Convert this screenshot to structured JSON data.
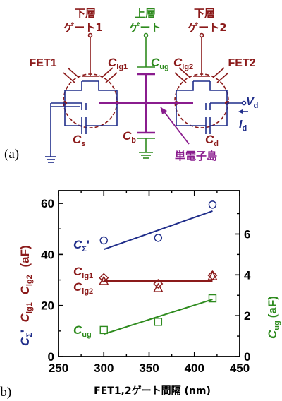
{
  "colors": {
    "circuit": "#1f2d8a",
    "gate": "#8b1a1a",
    "upper_gate": "#2e8b1e",
    "island": "#8a1c8e",
    "black": "#000000"
  },
  "panel_a": {
    "panel_label": "(a)",
    "lower_gate_1": [
      "下層",
      "ゲート1"
    ],
    "upper_gate": [
      "上層",
      "ゲート"
    ],
    "lower_gate_2": [
      "下層",
      "ゲート2"
    ],
    "fet1": "FET1",
    "fet2": "FET2",
    "c_lg1": {
      "sym": "C",
      "sub": "lg1"
    },
    "c_ug": {
      "sym": "C",
      "sub": "ug"
    },
    "c_lg2": {
      "sym": "C",
      "sub": "lg2"
    },
    "c_s": {
      "sym": "C",
      "sub": "s"
    },
    "c_b": {
      "sym": "C",
      "sub": "b"
    },
    "c_d": {
      "sym": "C",
      "sub": "d"
    },
    "v_d": {
      "sym": "V",
      "sub": "d"
    },
    "i_d": {
      "sym": "I",
      "sub": "d"
    },
    "island": "単電子島"
  },
  "panel_b": {
    "panel_label": "(b)",
    "ylabel_left": [
      {
        "sym": "C",
        "sub": "Σ",
        "prime": "'",
        "color": "#1f2d8a"
      },
      {
        "sym": "C",
        "sub": "lg1",
        "color": "#8b1a1a"
      },
      {
        "sym": "C",
        "sub": "lg2",
        "color": "#8b1a1a"
      },
      {
        "unit": "(aF)",
        "color": "#8b1a1a"
      }
    ],
    "ylabel_right": {
      "sym": "C",
      "sub": "ug",
      "unit": "(aF)"
    },
    "series_labels": {
      "c_sigma": {
        "sym": "C",
        "sub": "Σ",
        "prime": "'"
      },
      "c_lg1": {
        "sym": "C",
        "sub": "lg1"
      },
      "c_lg2": {
        "sym": "C",
        "sub": "lg2"
      },
      "c_ug": {
        "sym": "C",
        "sub": "ug"
      }
    }
  },
  "chart_data": {
    "type": "scatter",
    "xlabel": "FET1,2ゲート間隔 (nm)",
    "xlim": [
      250,
      450
    ],
    "xticks": [
      250,
      300,
      350,
      400,
      450
    ],
    "ylim_left": [
      0,
      65
    ],
    "yticks_left": [
      0,
      20,
      40,
      60
    ],
    "ylim_right": [
      0,
      8.125
    ],
    "yticks_right": [
      0,
      2,
      4,
      6
    ],
    "grid": false,
    "series": [
      {
        "name": "CΣ'",
        "axis": "left",
        "marker": "circle",
        "color": "#1f2d8a",
        "x": [
          300,
          360,
          420
        ],
        "y": [
          45.5,
          46.5,
          59.5
        ],
        "fit": {
          "x": [
            300,
            420
          ],
          "y": [
            42,
            57
          ]
        }
      },
      {
        "name": "Clg1",
        "axis": "left",
        "marker": "diamond",
        "color": "#8b1a1a",
        "x": [
          300,
          360,
          420
        ],
        "y": [
          30.8,
          28.5,
          31.8
        ],
        "fit": {
          "x": [
            300,
            420
          ],
          "y": [
            29.8,
            29.8
          ]
        }
      },
      {
        "name": "Clg2",
        "axis": "left",
        "marker": "triangle",
        "color": "#8b1a1a",
        "x": [
          300,
          360,
          420
        ],
        "y": [
          29.6,
          26.8,
          31.5
        ],
        "fit": {
          "x": [
            300,
            420
          ],
          "y": [
            29.5,
            29.5
          ]
        }
      },
      {
        "name": "Cug",
        "axis": "right",
        "marker": "square",
        "color": "#2e8b1e",
        "x": [
          300,
          360,
          420
        ],
        "y": [
          1.3,
          1.7,
          2.85
        ],
        "fit": {
          "x": [
            300,
            420
          ],
          "y": [
            1.1,
            2.8
          ]
        }
      }
    ]
  }
}
